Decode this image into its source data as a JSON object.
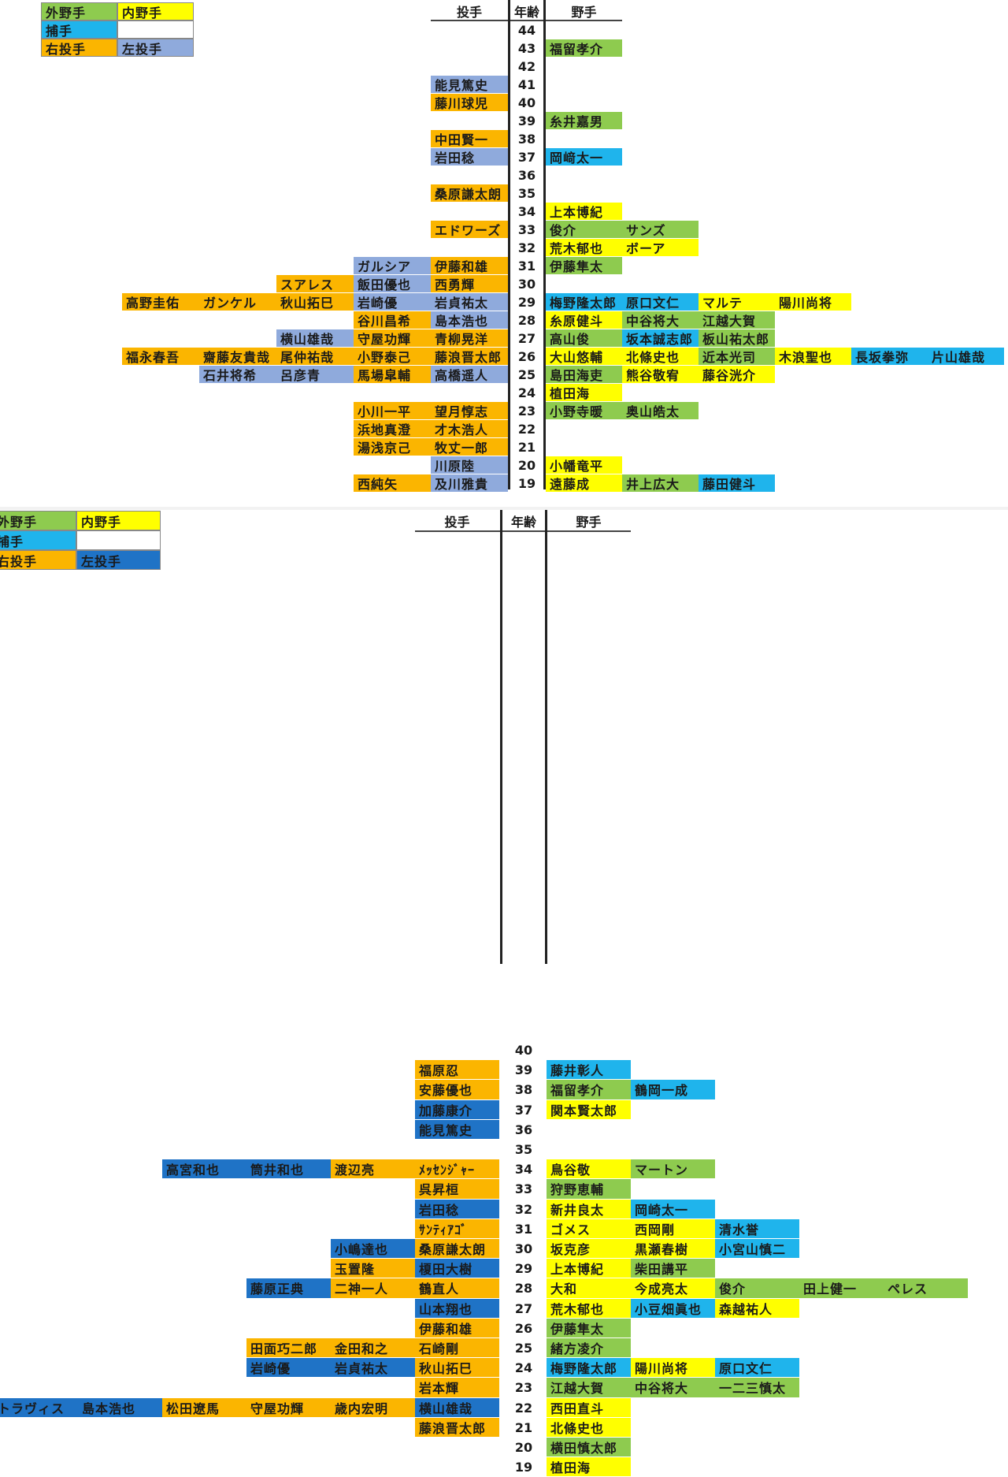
{
  "colors": {
    "of": "#8ecb4f",
    "if": "#ffff00",
    "c": "#1fb4ec",
    "rp": "#fbb500",
    "lp1": "#8faadc",
    "lp2": "#1f73c6",
    "blank": "#ffffff"
  },
  "panels": [
    {
      "headers": {
        "pitcher": "投手",
        "age": "年齢",
        "fielder": "野手"
      },
      "legend": [
        {
          "label": "外野手",
          "type": "of"
        },
        {
          "label": "内野手",
          "type": "if"
        },
        {
          "label": "捕手",
          "type": "c"
        },
        {
          "label": "",
          "type": "blank"
        },
        {
          "label": "右投手",
          "type": "rp"
        },
        {
          "label": "左投手",
          "type": "lp1"
        }
      ],
      "rows": [
        {
          "age": "44",
          "pitchers": [],
          "fielders": []
        },
        {
          "age": "43",
          "pitchers": [],
          "fielders": [
            {
              "name": "福留孝介",
              "type": "of"
            }
          ]
        },
        {
          "age": "42",
          "pitchers": [],
          "fielders": []
        },
        {
          "age": "41",
          "pitchers": [
            {
              "name": "能見篤史",
              "type": "lp1"
            }
          ],
          "fielders": []
        },
        {
          "age": "40",
          "pitchers": [
            {
              "name": "藤川球児",
              "type": "rp"
            }
          ],
          "fielders": []
        },
        {
          "age": "39",
          "pitchers": [],
          "fielders": [
            {
              "name": "糸井嘉男",
              "type": "of"
            }
          ]
        },
        {
          "age": "38",
          "pitchers": [
            {
              "name": "中田賢一",
              "type": "rp"
            }
          ],
          "fielders": []
        },
        {
          "age": "37",
          "pitchers": [
            {
              "name": "岩田稔",
              "type": "lp1"
            }
          ],
          "fielders": [
            {
              "name": "岡﨑太一",
              "type": "c"
            }
          ]
        },
        {
          "age": "36",
          "pitchers": [],
          "fielders": []
        },
        {
          "age": "35",
          "pitchers": [
            {
              "name": "桑原謙太朗",
              "type": "rp"
            }
          ],
          "fielders": []
        },
        {
          "age": "34",
          "pitchers": [],
          "fielders": [
            {
              "name": "上本博紀",
              "type": "if"
            }
          ]
        },
        {
          "age": "33",
          "pitchers": [
            {
              "name": "エドワーズ",
              "type": "rp"
            }
          ],
          "fielders": [
            {
              "name": "俊介",
              "type": "of"
            },
            {
              "name": "サンズ",
              "type": "of"
            }
          ]
        },
        {
          "age": "32",
          "pitchers": [],
          "fielders": [
            {
              "name": "荒木郁也",
              "type": "if"
            },
            {
              "name": "ボーア",
              "type": "if"
            }
          ]
        },
        {
          "age": "31",
          "pitchers": [
            {
              "name": "伊藤和雄",
              "type": "rp"
            },
            {
              "name": "ガルシア",
              "type": "lp1"
            }
          ],
          "fielders": [
            {
              "name": "伊藤隼太",
              "type": "of"
            }
          ]
        },
        {
          "age": "30",
          "pitchers": [
            {
              "name": "西勇輝",
              "type": "rp"
            },
            {
              "name": "飯田優也",
              "type": "lp1"
            },
            {
              "name": "スアレス",
              "type": "rp"
            }
          ],
          "fielders": []
        },
        {
          "age": "29",
          "pitchers": [
            {
              "name": "岩貞祐太",
              "type": "lp1"
            },
            {
              "name": "岩崎優",
              "type": "lp1"
            },
            {
              "name": "秋山拓巳",
              "type": "rp"
            },
            {
              "name": "ガンケル",
              "type": "rp"
            },
            {
              "name": "高野圭佑",
              "type": "rp"
            }
          ],
          "fielders": [
            {
              "name": "梅野隆太郎",
              "type": "c"
            },
            {
              "name": "原口文仁",
              "type": "c"
            },
            {
              "name": "マルテ",
              "type": "if"
            },
            {
              "name": "陽川尚将",
              "type": "if"
            }
          ]
        },
        {
          "age": "28",
          "pitchers": [
            {
              "name": "島本浩也",
              "type": "lp1"
            },
            {
              "name": "谷川昌希",
              "type": "rp"
            }
          ],
          "fielders": [
            {
              "name": "糸原健斗",
              "type": "if"
            },
            {
              "name": "中谷将大",
              "type": "of"
            },
            {
              "name": "江越大賀",
              "type": "of"
            }
          ]
        },
        {
          "age": "27",
          "pitchers": [
            {
              "name": "青柳晃洋",
              "type": "rp"
            },
            {
              "name": "守屋功輝",
              "type": "rp"
            },
            {
              "name": "横山雄哉",
              "type": "lp1"
            }
          ],
          "fielders": [
            {
              "name": "高山俊",
              "type": "of"
            },
            {
              "name": "坂本誠志郎",
              "type": "c"
            },
            {
              "name": "板山祐太郎",
              "type": "of"
            }
          ]
        },
        {
          "age": "26",
          "pitchers": [
            {
              "name": "藤浪晋太郎",
              "type": "rp"
            },
            {
              "name": "小野泰己",
              "type": "rp"
            },
            {
              "name": "尾仲祐哉",
              "type": "rp"
            },
            {
              "name": "齋藤友貴哉",
              "type": "rp"
            },
            {
              "name": "福永春吾",
              "type": "rp"
            }
          ],
          "fielders": [
            {
              "name": "大山悠輔",
              "type": "if"
            },
            {
              "name": "北條史也",
              "type": "if"
            },
            {
              "name": "近本光司",
              "type": "of"
            },
            {
              "name": "木浪聖也",
              "type": "if"
            },
            {
              "name": "長坂拳弥",
              "type": "c"
            },
            {
              "name": "片山雄哉",
              "type": "c"
            }
          ]
        },
        {
          "age": "25",
          "pitchers": [
            {
              "name": "高橋遥人",
              "type": "lp1"
            },
            {
              "name": "馬場皐輔",
              "type": "rp"
            },
            {
              "name": "呂彦青",
              "type": "lp1"
            },
            {
              "name": "石井将希",
              "type": "lp1"
            }
          ],
          "fielders": [
            {
              "name": "島田海吏",
              "type": "of"
            },
            {
              "name": "熊谷敬宥",
              "type": "if"
            },
            {
              "name": "藤谷洸介",
              "type": "if"
            }
          ]
        },
        {
          "age": "24",
          "pitchers": [],
          "fielders": [
            {
              "name": "植田海",
              "type": "if"
            }
          ]
        },
        {
          "age": "23",
          "pitchers": [
            {
              "name": "望月惇志",
              "type": "rp"
            },
            {
              "name": "小川一平",
              "type": "rp"
            }
          ],
          "fielders": [
            {
              "name": "小野寺暖",
              "type": "of"
            },
            {
              "name": "奥山皓太",
              "type": "of"
            }
          ]
        },
        {
          "age": "22",
          "pitchers": [
            {
              "name": "才木浩人",
              "type": "rp"
            },
            {
              "name": "浜地真澄",
              "type": "rp"
            }
          ],
          "fielders": []
        },
        {
          "age": "21",
          "pitchers": [
            {
              "name": "牧丈一郎",
              "type": "rp"
            },
            {
              "name": "湯浅京己",
              "type": "rp"
            }
          ],
          "fielders": []
        },
        {
          "age": "20",
          "pitchers": [
            {
              "name": "川原陸",
              "type": "lp1"
            }
          ],
          "fielders": [
            {
              "name": "小幡竜平",
              "type": "if"
            }
          ]
        },
        {
          "age": "19",
          "pitchers": [
            {
              "name": "及川雅貴",
              "type": "lp1"
            },
            {
              "name": "西純矢",
              "type": "rp"
            }
          ],
          "fielders": [
            {
              "name": "遠藤成",
              "type": "if"
            },
            {
              "name": "井上広大",
              "type": "of"
            },
            {
              "name": "藤田健斗",
              "type": "c"
            }
          ]
        }
      ]
    },
    {
      "headers": {
        "pitcher": "投手",
        "age": "年齢",
        "fielder": "野手"
      },
      "legend": [
        {
          "label": "外野手",
          "type": "of"
        },
        {
          "label": "内野手",
          "type": "if"
        },
        {
          "label": "捕手",
          "type": "c"
        },
        {
          "label": "",
          "type": "blank"
        },
        {
          "label": "右投手",
          "type": "rp"
        },
        {
          "label": "左投手",
          "type": "lp2"
        }
      ],
      "rows": [
        {
          "age": "40",
          "pitchers": [],
          "fielders": []
        },
        {
          "age": "39",
          "pitchers": [
            {
              "name": "福原忍",
              "type": "rp"
            }
          ],
          "fielders": [
            {
              "name": "藤井彰人",
              "type": "c"
            }
          ]
        },
        {
          "age": "38",
          "pitchers": [
            {
              "name": "安藤優也",
              "type": "rp"
            }
          ],
          "fielders": [
            {
              "name": "福留孝介",
              "type": "of"
            },
            {
              "name": "鶴岡一成",
              "type": "c"
            }
          ]
        },
        {
          "age": "37",
          "pitchers": [
            {
              "name": "加藤康介",
              "type": "lp2"
            }
          ],
          "fielders": [
            {
              "name": "関本賢太郎",
              "type": "if"
            }
          ]
        },
        {
          "age": "36",
          "pitchers": [
            {
              "name": "能見篤史",
              "type": "lp2"
            }
          ],
          "fielders": []
        },
        {
          "age": "35",
          "pitchers": [],
          "fielders": []
        },
        {
          "age": "34",
          "pitchers": [
            {
              "name": "ﾒｯｾﾝｼﾞｬｰ",
              "type": "rp"
            },
            {
              "name": "渡辺亮",
              "type": "rp"
            },
            {
              "name": "筒井和也",
              "type": "lp2"
            },
            {
              "name": "高宮和也",
              "type": "lp2"
            }
          ],
          "fielders": [
            {
              "name": "鳥谷敬",
              "type": "if"
            },
            {
              "name": "マートン",
              "type": "of"
            }
          ]
        },
        {
          "age": "33",
          "pitchers": [
            {
              "name": "呉昇桓",
              "type": "rp"
            }
          ],
          "fielders": [
            {
              "name": "狩野恵輔",
              "type": "of"
            }
          ]
        },
        {
          "age": "32",
          "pitchers": [
            {
              "name": "岩田稔",
              "type": "lp2"
            }
          ],
          "fielders": [
            {
              "name": "新井良太",
              "type": "if"
            },
            {
              "name": "岡崎太一",
              "type": "c"
            }
          ]
        },
        {
          "age": "31",
          "pitchers": [
            {
              "name": "ｻﾝﾃｨｱｺﾞ",
              "type": "rp"
            }
          ],
          "fielders": [
            {
              "name": "ゴメス",
              "type": "if"
            },
            {
              "name": "西岡剛",
              "type": "if"
            },
            {
              "name": "清水誉",
              "type": "c"
            }
          ]
        },
        {
          "age": "30",
          "pitchers": [
            {
              "name": "桑原謙太朗",
              "type": "rp"
            },
            {
              "name": "小嶋達也",
              "type": "lp2"
            }
          ],
          "fielders": [
            {
              "name": "坂克彦",
              "type": "if"
            },
            {
              "name": "黒瀬春樹",
              "type": "if"
            },
            {
              "name": "小宮山慎二",
              "type": "c"
            }
          ]
        },
        {
          "age": "29",
          "pitchers": [
            {
              "name": "榎田大樹",
              "type": "lp2"
            },
            {
              "name": "玉置隆",
              "type": "rp"
            }
          ],
          "fielders": [
            {
              "name": "上本博紀",
              "type": "if"
            },
            {
              "name": "柴田講平",
              "type": "of"
            }
          ]
        },
        {
          "age": "28",
          "pitchers": [
            {
              "name": "鶴直人",
              "type": "rp"
            },
            {
              "name": "二神一人",
              "type": "rp"
            },
            {
              "name": "藤原正典",
              "type": "lp2"
            }
          ],
          "fielders": [
            {
              "name": "大和",
              "type": "if"
            },
            {
              "name": "今成亮太",
              "type": "if"
            },
            {
              "name": "俊介",
              "type": "of"
            },
            {
              "name": "田上健一",
              "type": "of"
            },
            {
              "name": "ペレス",
              "type": "of"
            }
          ]
        },
        {
          "age": "27",
          "pitchers": [
            {
              "name": "山本翔也",
              "type": "lp2"
            }
          ],
          "fielders": [
            {
              "name": "荒木郁也",
              "type": "if"
            },
            {
              "name": "小豆畑眞也",
              "type": "c"
            },
            {
              "name": "森越祐人",
              "type": "if"
            }
          ]
        },
        {
          "age": "26",
          "pitchers": [
            {
              "name": "伊藤和雄",
              "type": "rp"
            }
          ],
          "fielders": [
            {
              "name": "伊藤隼太",
              "type": "of"
            }
          ]
        },
        {
          "age": "25",
          "pitchers": [
            {
              "name": "石崎剛",
              "type": "rp"
            },
            {
              "name": "金田和之",
              "type": "rp"
            },
            {
              "name": "田面巧二郎",
              "type": "rp"
            }
          ],
          "fielders": [
            {
              "name": "緒方凌介",
              "type": "of"
            }
          ]
        },
        {
          "age": "24",
          "pitchers": [
            {
              "name": "秋山拓巳",
              "type": "rp"
            },
            {
              "name": "岩貞祐太",
              "type": "lp2"
            },
            {
              "name": "岩崎優",
              "type": "lp2"
            }
          ],
          "fielders": [
            {
              "name": "梅野隆太郎",
              "type": "c"
            },
            {
              "name": "陽川尚将",
              "type": "if"
            },
            {
              "name": "原口文仁",
              "type": "c"
            }
          ]
        },
        {
          "age": "23",
          "pitchers": [
            {
              "name": "岩本輝",
              "type": "rp"
            }
          ],
          "fielders": [
            {
              "name": "江越大賀",
              "type": "of"
            },
            {
              "name": "中谷将大",
              "type": "of"
            },
            {
              "name": "一二三慎太",
              "type": "of"
            }
          ]
        },
        {
          "age": "22",
          "pitchers": [
            {
              "name": "横山雄哉",
              "type": "lp2"
            },
            {
              "name": "歳内宏明",
              "type": "rp"
            },
            {
              "name": "守屋功輝",
              "type": "rp"
            },
            {
              "name": "松田遼馬",
              "type": "rp"
            },
            {
              "name": "島本浩也",
              "type": "lp2"
            },
            {
              "name": "トラヴィス",
              "type": "lp2"
            }
          ],
          "fielders": [
            {
              "name": "西田直斗",
              "type": "if"
            }
          ]
        },
        {
          "age": "21",
          "pitchers": [
            {
              "name": "藤浪晋太郎",
              "type": "rp"
            }
          ],
          "fielders": [
            {
              "name": "北條史也",
              "type": "if"
            }
          ]
        },
        {
          "age": "20",
          "pitchers": [],
          "fielders": [
            {
              "name": "横田慎太郎",
              "type": "of"
            }
          ]
        },
        {
          "age": "19",
          "pitchers": [],
          "fielders": [
            {
              "name": "植田海",
              "type": "if"
            }
          ]
        }
      ]
    }
  ]
}
